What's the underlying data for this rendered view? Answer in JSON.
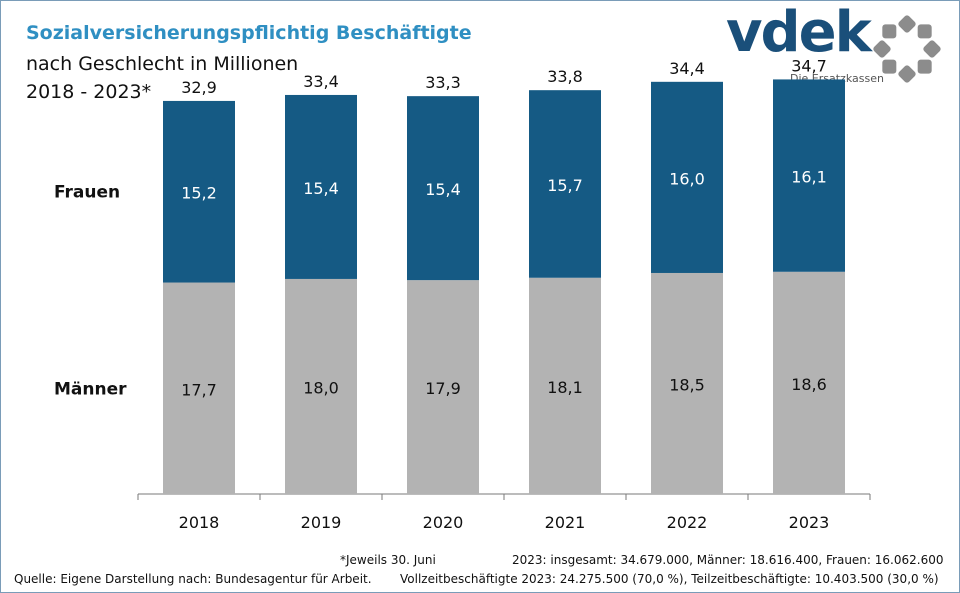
{
  "header": {
    "title": "Sozialversicherungspflichtig Beschäftigte",
    "subtitle": "nach Geschlecht in Millionen",
    "period": "2018 - 2023*"
  },
  "logo": {
    "wordmark": "vdek",
    "tagline": "Die Ersatzkassen",
    "color": "#1a4f7a",
    "ring_color": "#8c8c8c"
  },
  "chart_data": {
    "type": "bar",
    "stacked": true,
    "categories": [
      "2018",
      "2019",
      "2020",
      "2021",
      "2022",
      "2023"
    ],
    "series": [
      {
        "name": "Männer",
        "color": "#b3b3b3",
        "values": [
          17.7,
          18.0,
          17.9,
          18.1,
          18.5,
          18.6
        ],
        "labels": [
          "17,7",
          "18,0",
          "17,9",
          "18,1",
          "18,5",
          "18,6"
        ]
      },
      {
        "name": "Frauen",
        "color": "#155a84",
        "values": [
          15.2,
          15.4,
          15.4,
          15.7,
          16.0,
          16.1
        ],
        "labels": [
          "15,2",
          "15,4",
          "15,4",
          "15,7",
          "16,0",
          "16,1"
        ]
      }
    ],
    "totals": [
      32.9,
      33.4,
      33.3,
      33.8,
      34.4,
      34.7
    ],
    "total_labels": [
      "32,9",
      "33,4",
      "33,3",
      "33,8",
      "34,4",
      "34,7"
    ],
    "ylim": [
      0,
      38
    ],
    "grid": false,
    "legend": "left"
  },
  "footer": {
    "footnote": "*Jeweils 30. Juni",
    "totals_note": "2023: insgesamt: 34.679.000,  Männer: 18.616.400,  Frauen: 16.062.600",
    "source": "Quelle: Eigene Darstellung nach: Bundesagentur für Arbeit.",
    "fulltime_note": "Vollzeitbeschäftigte  2023: 24.275.500 (70,0 %), Teilzeitbeschäftigte:  10.403.500 (30,0 %)"
  }
}
